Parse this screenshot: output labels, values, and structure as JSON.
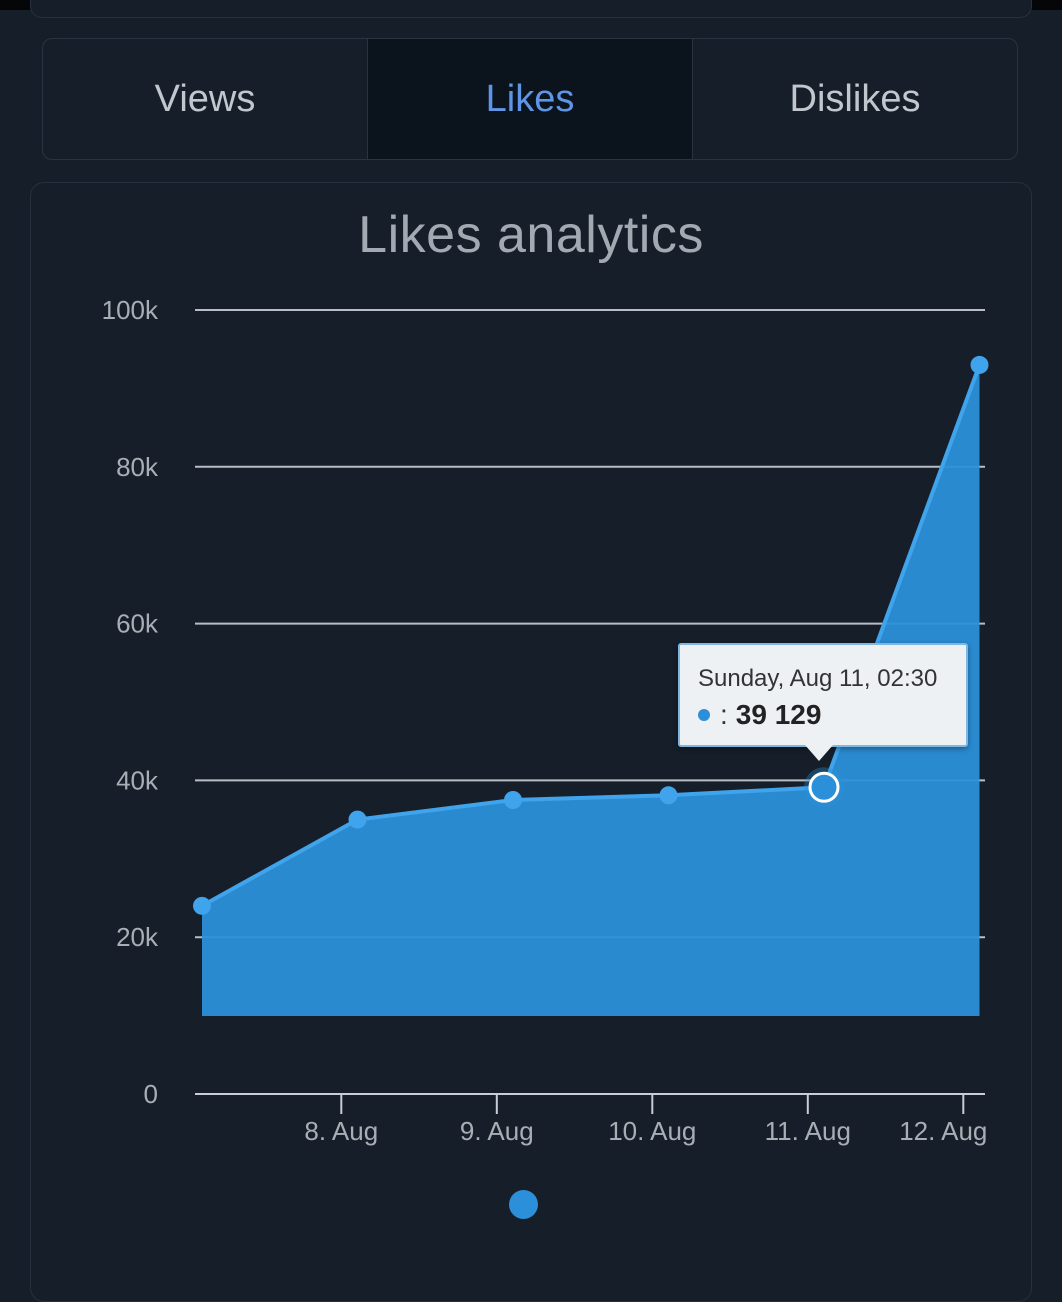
{
  "tabs": [
    {
      "label": "Views",
      "active": false
    },
    {
      "label": "Likes",
      "active": true
    },
    {
      "label": "Dislikes",
      "active": false
    }
  ],
  "chart_data": {
    "type": "area",
    "title": "Likes analytics",
    "xlabel": "",
    "ylabel": "",
    "ylim": [
      0,
      100000
    ],
    "y_ticks": [
      0,
      20000,
      40000,
      60000,
      80000,
      100000
    ],
    "y_tick_labels": [
      "0",
      "20k",
      "40k",
      "60k",
      "80k",
      "100k"
    ],
    "x_tick_labels": [
      "8. Aug",
      "9. Aug",
      "10. Aug",
      "11. Aug",
      "12. Aug"
    ],
    "grid": true,
    "series": [
      {
        "color": "#2b90d9",
        "x": [
          "2024-08-07 02:30",
          "2024-08-08 02:30",
          "2024-08-09 02:30",
          "2024-08-10 02:30",
          "2024-08-11 02:30",
          "2024-08-12 02:30"
        ],
        "values": [
          24000,
          35000,
          37500,
          38100,
          39129,
          93000
        ]
      }
    ],
    "tooltip": {
      "date": "Sunday, Aug 11, 02:30",
      "separator": ":",
      "value": "39 129"
    },
    "legend": {
      "placement": "bottom-center"
    }
  },
  "colors": {
    "background": "#161e29",
    "series": "#2b90d9",
    "active_tab_text": "#5f95e6"
  }
}
